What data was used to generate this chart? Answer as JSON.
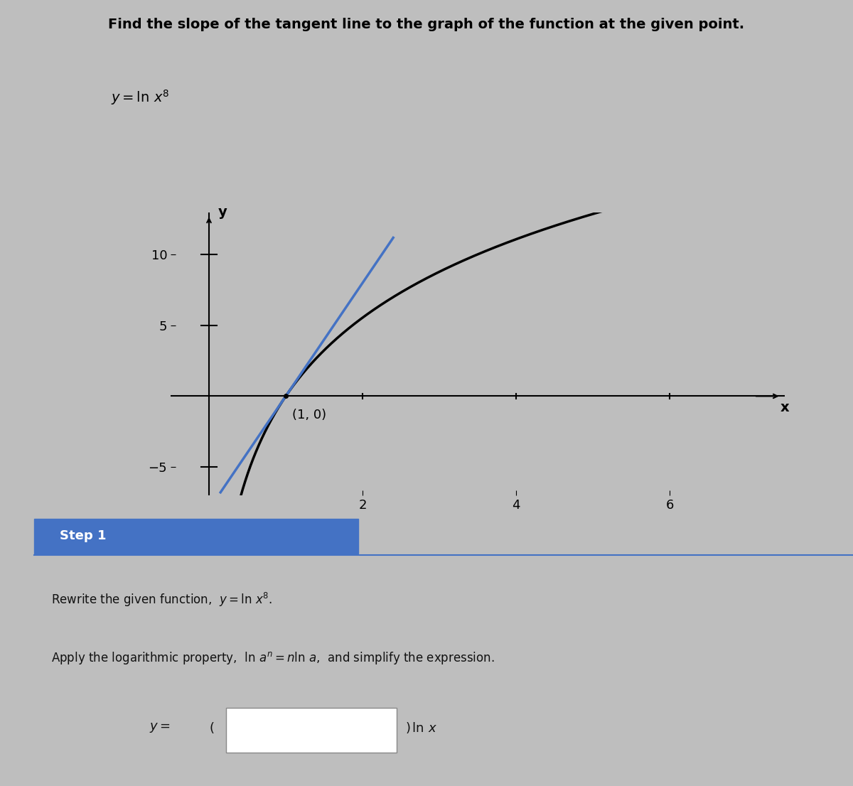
{
  "title_text": "Find the slope of the tangent line to the graph of the function at the given point.",
  "function_label": "y = ln x^8",
  "point_label": "(1, 0)",
  "x_axis_label": "x",
  "y_axis_label": "y",
  "x_ticks": [
    2,
    4,
    6
  ],
  "y_ticks": [
    -5,
    5,
    10
  ],
  "xlim": [
    -0.5,
    7.5
  ],
  "ylim": [
    -7,
    13
  ],
  "curve_color": "#000000",
  "tangent_color": "#4472C4",
  "exponent": 8,
  "bg_color": "#BEBEBE",
  "step1_bg": "#4472C4",
  "step1_text": "Step 1",
  "step1_text_color": "#FFFFFF",
  "bottom_section_bg": "#D8D8D8",
  "axis_color": "#000000",
  "tick_color": "#000000",
  "separator_color": "#4472C4"
}
